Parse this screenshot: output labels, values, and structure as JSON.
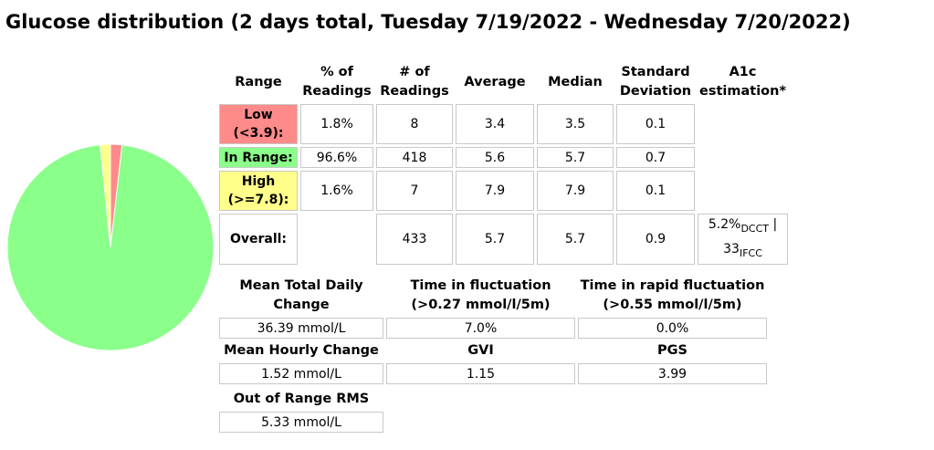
{
  "title": "Glucose distribution (2 days total, Tuesday 7/19/2022 - Wednesday 7/20/2022)",
  "colors": {
    "low": "#ff8a8a",
    "in_range": "#8aff8a",
    "high": "#ffff8a"
  },
  "chart_data": {
    "type": "pie",
    "slices": [
      {
        "name": "Low",
        "value": 1.8,
        "color": "#ff8a8a"
      },
      {
        "name": "In Range",
        "value": 96.6,
        "color": "#8aff8a"
      },
      {
        "name": "High",
        "value": 1.6,
        "color": "#ffff8a"
      }
    ]
  },
  "table": {
    "headers": {
      "range": "Range",
      "pct_1": "% of",
      "pct_2": "Readings",
      "num_1": "# of",
      "num_2": "Readings",
      "average": "Average",
      "median": "Median",
      "sd_1": "Standard",
      "sd_2": "Deviation",
      "a1c_1": "A1c",
      "a1c_2": "estimation*"
    },
    "rows": [
      {
        "label_1": "Low",
        "label_2": "(<3.9):",
        "pct": "1.8%",
        "count": "8",
        "average": "3.4",
        "median": "3.5",
        "sd": "0.1"
      },
      {
        "label_1": "In Range:",
        "pct": "96.6%",
        "count": "418",
        "average": "5.6",
        "median": "5.7",
        "sd": "0.7"
      },
      {
        "label_1": "High",
        "label_2": "(>=7.8):",
        "pct": "1.6%",
        "count": "7",
        "average": "7.9",
        "median": "7.9",
        "sd": "0.1"
      },
      {
        "label_1": "Overall:",
        "pct": "",
        "count": "433",
        "average": "5.7",
        "median": "5.7",
        "sd": "0.9"
      }
    ],
    "a1c": {
      "dcct_value": "5.2%",
      "dcct_sub": "DCCT",
      "sep": " |",
      "ifcc_value": "33",
      "ifcc_sub": "IFCC"
    }
  },
  "metrics": {
    "mean_total_daily_change": {
      "label_1": "Mean Total Daily",
      "label_2": "Change",
      "value": "36.39 mmol/L"
    },
    "time_in_fluctuation": {
      "label_1": "Time in fluctuation",
      "label_2": "(>0.27 mmol/l/5m)",
      "value": "7.0%"
    },
    "time_in_rapid_fluctuation": {
      "label_1": "Time in rapid fluctuation",
      "label_2": "(>0.55 mmol/l/5m)",
      "value": "0.0%"
    },
    "mean_hourly_change": {
      "label": "Mean Hourly Change",
      "value": "1.52 mmol/L"
    },
    "gvi": {
      "label": "GVI",
      "value": "1.15"
    },
    "pgs": {
      "label": "PGS",
      "value": "3.99"
    },
    "out_of_range_rms": {
      "label": "Out of Range RMS",
      "value": "5.33 mmol/L"
    }
  }
}
